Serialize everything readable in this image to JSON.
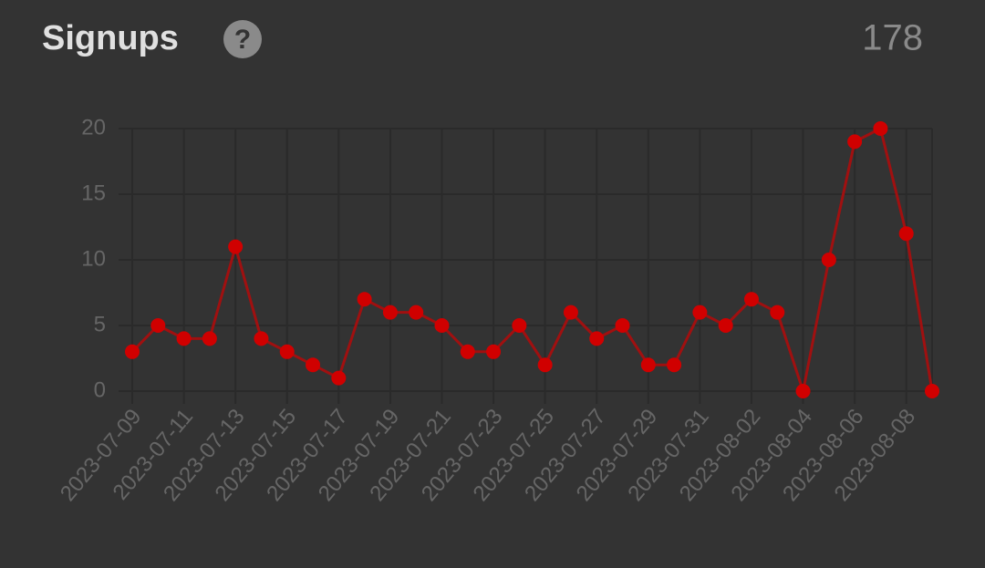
{
  "header": {
    "title": "Signups",
    "help_icon": "?",
    "total": 178
  },
  "chart_data": {
    "type": "line",
    "categories": [
      "2023-07-09",
      null,
      "2023-07-11",
      null,
      "2023-07-13",
      null,
      "2023-07-15",
      null,
      "2023-07-17",
      null,
      "2023-07-19",
      null,
      "2023-07-21",
      null,
      "2023-07-23",
      null,
      "2023-07-25",
      null,
      "2023-07-27",
      null,
      "2023-07-29",
      null,
      "2023-07-31",
      null,
      "2023-08-02",
      null,
      "2023-08-04",
      null,
      "2023-08-06",
      null,
      "2023-08-08",
      null
    ],
    "series": [
      {
        "name": "Signups",
        "color": "#d00000",
        "values": [
          3,
          5,
          4,
          4,
          11,
          4,
          3,
          2,
          1,
          7,
          6,
          6,
          5,
          3,
          3,
          5,
          2,
          6,
          4,
          5,
          2,
          2,
          6,
          5,
          7,
          6,
          0,
          10,
          19,
          20,
          12,
          0
        ]
      }
    ],
    "ylim": [
      0,
      20
    ],
    "yticks": [
      0,
      5,
      10,
      15,
      20
    ],
    "grid": true
  }
}
